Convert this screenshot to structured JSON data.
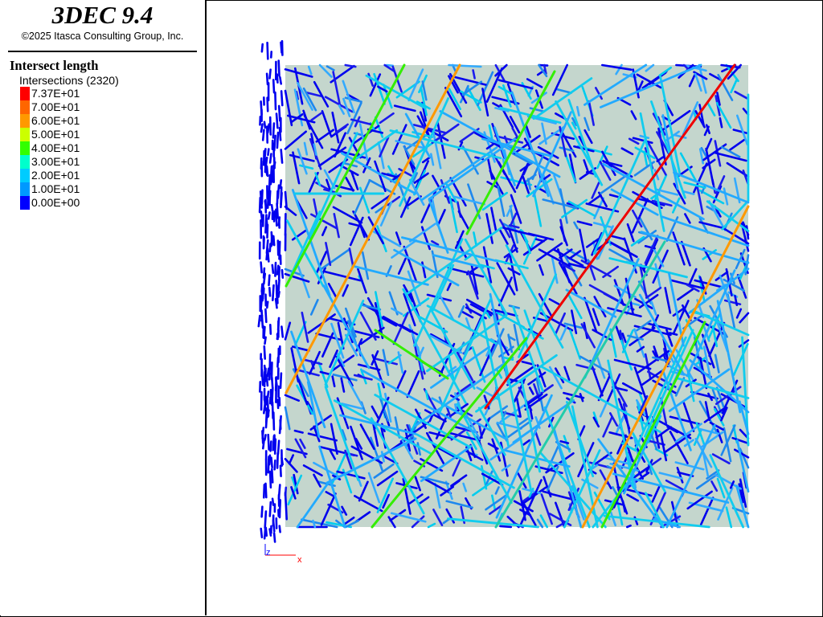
{
  "app": {
    "title": "3DEC 9.4",
    "copyright": "©2025 Itasca Consulting Group, Inc."
  },
  "legend": {
    "title": "Intersect length",
    "subtitle": "Intersections (2320)",
    "entries": [
      {
        "label": "7.37E+01",
        "color": "#ff0000"
      },
      {
        "label": "7.00E+01",
        "color": "#ff6600"
      },
      {
        "label": "6.00E+01",
        "color": "#ff9900"
      },
      {
        "label": "5.00E+01",
        "color": "#ccff00"
      },
      {
        "label": "4.00E+01",
        "color": "#33ff00"
      },
      {
        "label": "3.00E+01",
        "color": "#00ffcc"
      },
      {
        "label": "2.00E+01",
        "color": "#00ccff"
      },
      {
        "label": "1.00E+01",
        "color": "#0099ff"
      },
      {
        "label": "0.00E+00",
        "color": "#0000ff"
      }
    ]
  },
  "axes": {
    "x_label": "x",
    "z_label": "z",
    "x_color": "#ff0000",
    "z_color": "#0000ff"
  },
  "colors": {
    "block_fill": "#c4d6cd",
    "frame": "#000000"
  }
}
